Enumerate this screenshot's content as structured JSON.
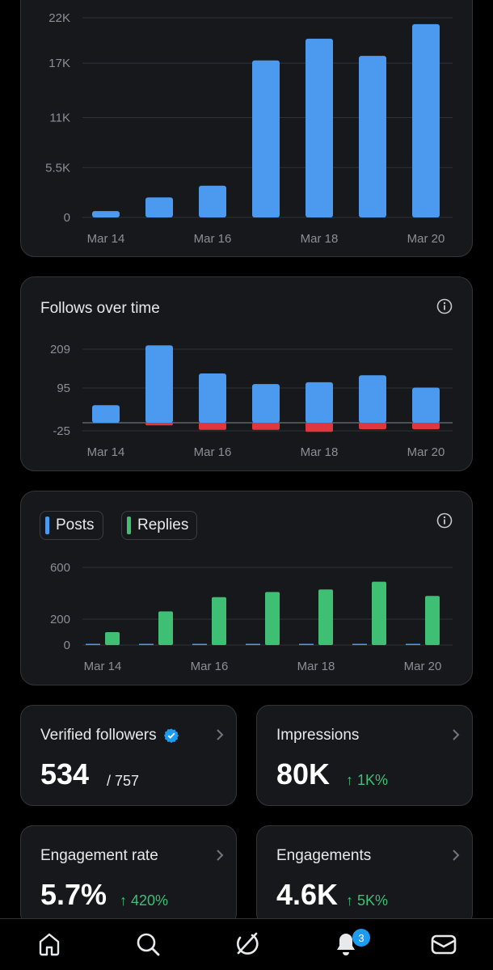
{
  "charts": {
    "impressions": {
      "type": "bar",
      "y_ticks": [
        "22K",
        "17K",
        "11K",
        "5.5K",
        "0"
      ],
      "x_ticks": [
        "Mar 14",
        "Mar 16",
        "Mar 18",
        "Mar 20"
      ]
    },
    "follows": {
      "title": "Follows over time",
      "y_ticks": [
        "209",
        "95",
        "-25"
      ],
      "x_ticks": [
        "Mar 14",
        "Mar 16",
        "Mar 18",
        "Mar 20"
      ]
    },
    "posts": {
      "legend": [
        "Posts",
        "Replies"
      ],
      "y_ticks": [
        "600",
        "200",
        "0"
      ],
      "x_ticks": [
        "Mar 14",
        "Mar 16",
        "Mar 18",
        "Mar 20"
      ]
    }
  },
  "chart_data": [
    {
      "type": "bar",
      "categories": [
        "Mar 14",
        "Mar 15",
        "Mar 16",
        "Mar 17",
        "Mar 18",
        "Mar 19",
        "Mar 20"
      ],
      "values": [
        700,
        2200,
        3500,
        17300,
        19700,
        17800,
        21300
      ],
      "ylim": [
        0,
        22000
      ],
      "y_ticks": [
        0,
        5500,
        11000,
        17000,
        22000
      ],
      "color": "#4c9aef"
    },
    {
      "type": "bar",
      "title": "Follows over time",
      "categories": [
        "Mar 14",
        "Mar 15",
        "Mar 16",
        "Mar 17",
        "Mar 18",
        "Mar 19",
        "Mar 20"
      ],
      "series": [
        {
          "values": [
            50,
            220,
            140,
            110,
            115,
            135,
            100
          ],
          "color": "#4c9aef"
        },
        {
          "values": [
            0,
            -8,
            -22,
            -22,
            -28,
            -20,
            -20
          ],
          "color": "#e0363d"
        }
      ],
      "ylim": [
        -25,
        209
      ],
      "y_ticks": [
        -25,
        95,
        209
      ]
    },
    {
      "type": "bar",
      "categories": [
        "Mar 14",
        "Mar 15",
        "Mar 16",
        "Mar 17",
        "Mar 18",
        "Mar 19",
        "Mar 20"
      ],
      "series": [
        {
          "name": "Posts",
          "values": [
            2,
            2,
            2,
            5,
            5,
            2,
            5
          ],
          "color": "#4c9aef"
        },
        {
          "name": "Replies",
          "values": [
            100,
            260,
            370,
            410,
            430,
            490,
            380
          ],
          "color": "#3fbf74"
        }
      ],
      "ylim": [
        0,
        600
      ],
      "y_ticks": [
        0,
        200,
        600
      ]
    }
  ],
  "stats": {
    "verified": {
      "label": "Verified followers",
      "value": "534",
      "sub": "/ 757"
    },
    "impressions": {
      "label": "Impressions",
      "value": "80K",
      "change": "1K%"
    },
    "engagement_rate": {
      "label": "Engagement rate",
      "value": "5.7%",
      "change": "420%"
    },
    "engagements": {
      "label": "Engagements",
      "value": "4.6K",
      "change": "5K%"
    }
  },
  "nav": {
    "items": [
      "home-icon",
      "search-icon",
      "grok-icon",
      "notifications-icon",
      "messages-icon"
    ],
    "notification_count": "3"
  },
  "colors": {
    "blue": "#4c9aef",
    "green": "#3fbf74",
    "red": "#e0363d",
    "verified": "#1d9bf0"
  }
}
